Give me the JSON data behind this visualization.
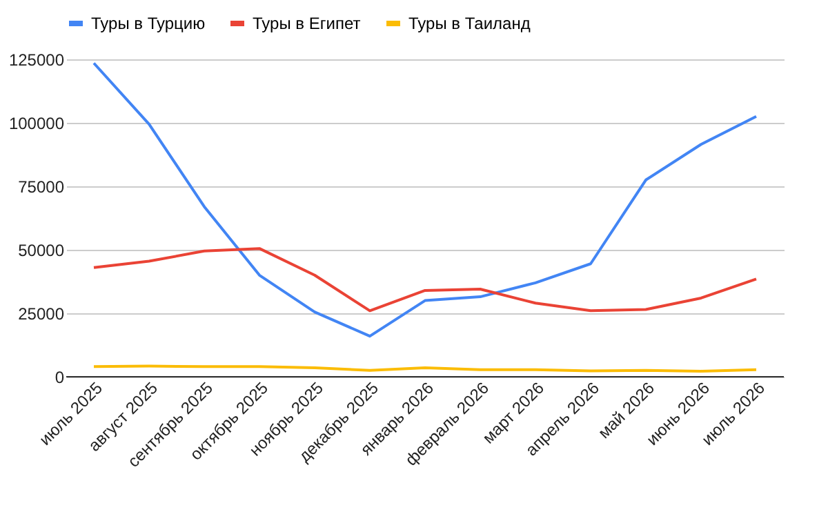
{
  "chart_data": {
    "type": "line",
    "categories": [
      "июль 2025",
      "август 2025",
      "сентябрь 2025",
      "октябрь 2025",
      "ноябрь 2025",
      "декабрь 2025",
      "январь 2026",
      "февраль 2026",
      "март 2026",
      "апрель 2026",
      "май 2026",
      "июнь 2026",
      "июль 2026"
    ],
    "series": [
      {
        "name": "Туры в Турцию",
        "color": "#4285f4",
        "values": [
          123500,
          99500,
          67000,
          40000,
          25500,
          16000,
          30000,
          31500,
          37000,
          44500,
          77500,
          91500,
          102500
        ]
      },
      {
        "name": "Туры в Египет",
        "color": "#ea4335",
        "values": [
          43000,
          45500,
          49500,
          50500,
          40000,
          26000,
          34000,
          34500,
          29000,
          26000,
          26500,
          31000,
          38500
        ]
      },
      {
        "name": "Туры в Таиланд",
        "color": "#fbbc04",
        "values": [
          4000,
          4200,
          4000,
          4000,
          3500,
          2500,
          3500,
          2800,
          2800,
          2300,
          2500,
          2200,
          2800
        ]
      }
    ],
    "ylim": [
      0,
      125000
    ],
    "yticks": [
      0,
      25000,
      50000,
      75000,
      100000,
      125000
    ],
    "grid": "y",
    "legend": "top",
    "marker": "none",
    "line_style": "solid"
  }
}
